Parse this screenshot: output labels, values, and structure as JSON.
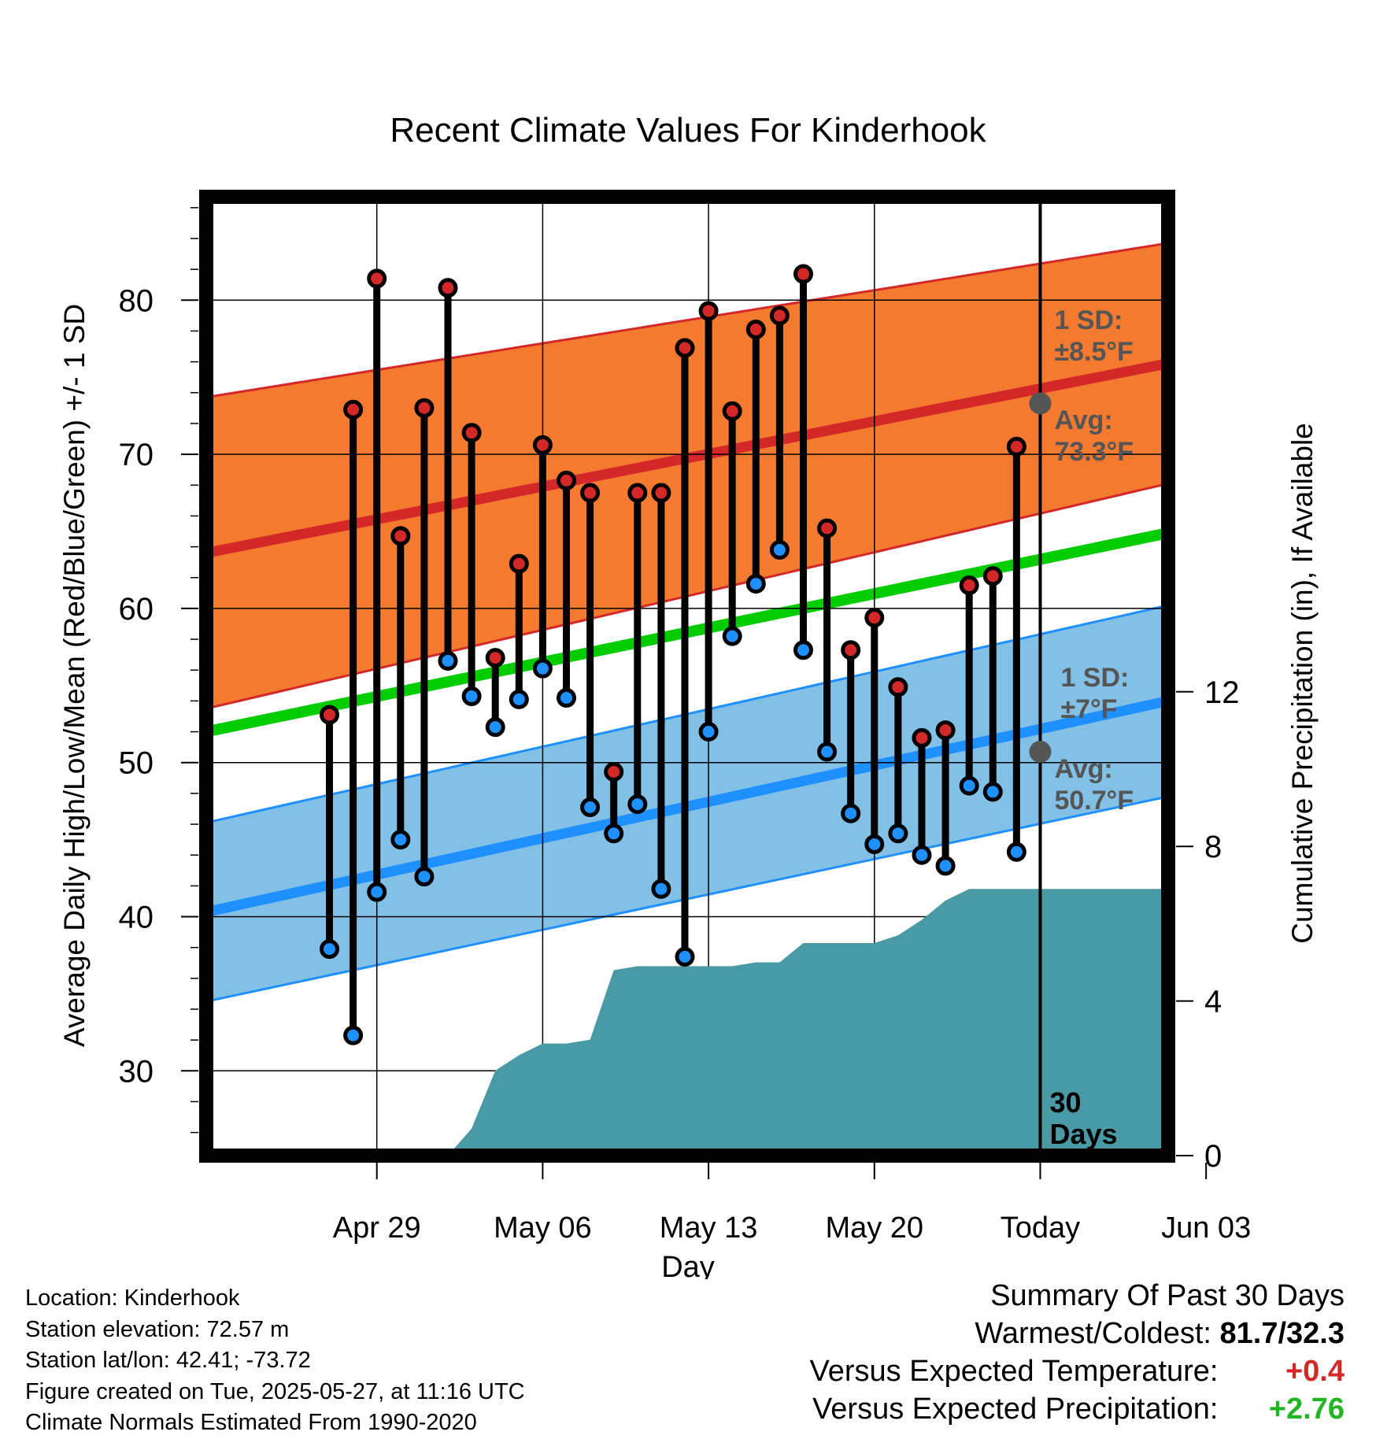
{
  "chart_data": {
    "type": "line",
    "title": "Recent Climate Values For Kinderhook",
    "xlabel": "Day",
    "ylabel_left": "Average Daily High/Low/Mean (Red/Blue/Green) +/- 1 SD",
    "ylabel_right": "Cumulative Precipitation (in), If Available",
    "ylim_left": [
      24.5,
      86
    ],
    "ylim_right": [
      0,
      16
    ],
    "x_range_days": [
      -7.2,
      33.4
    ],
    "x_ticks": [
      {
        "day": 0,
        "label": "Apr 29"
      },
      {
        "day": 7,
        "label": "May 06"
      },
      {
        "day": 14,
        "label": "May 13"
      },
      {
        "day": 21,
        "label": "May 20"
      },
      {
        "day": 28,
        "label": "Today"
      },
      {
        "day": 35,
        "label": "Jun 03"
      }
    ],
    "y_ticks_left": [
      30,
      40,
      50,
      60,
      70,
      80
    ],
    "y_ticks_right": [
      0,
      4,
      8,
      12
    ],
    "today_day": 28,
    "today_marker_label_number": "30",
    "today_marker_label_word": "Days",
    "normal_high": {
      "start": 63.6,
      "end": 75.9,
      "sd_start": 10.1,
      "sd_end": 7.8,
      "color": "#d42828",
      "band_color": "#f47a30"
    },
    "normal_low": {
      "start": 40.3,
      "end": 54.0,
      "sd_start": 5.8,
      "sd_end": 6.2,
      "color": "#1e90ff",
      "band_color": "#82c0e6"
    },
    "normal_mean": {
      "start": 52.0,
      "end": 64.9,
      "color": "#00cc00"
    },
    "annotations": [
      {
        "text_top": "1 SD:",
        "text_bottom": "±8.5°F",
        "series": "high"
      },
      {
        "text_top": "Avg:",
        "text_bottom": "73.3°F",
        "series": "high",
        "value": 73.3
      },
      {
        "text_top": "1 SD:",
        "text_bottom": "±7°F",
        "series": "low"
      },
      {
        "text_top": "Avg:",
        "text_bottom": "50.7°F",
        "series": "low",
        "value": 50.7
      }
    ],
    "daily": [
      {
        "day": -2,
        "high": 53.1,
        "low": 37.9
      },
      {
        "day": -1,
        "high": 72.9,
        "low": 32.3
      },
      {
        "day": 0,
        "high": 81.4,
        "low": 41.6
      },
      {
        "day": 1,
        "high": 64.7,
        "low": 45.0
      },
      {
        "day": 2,
        "high": 73.0,
        "low": 42.6
      },
      {
        "day": 3,
        "high": 80.8,
        "low": 56.6
      },
      {
        "day": 4,
        "high": 71.4,
        "low": 54.3
      },
      {
        "day": 5,
        "high": 56.8,
        "low": 52.3
      },
      {
        "day": 6,
        "high": 62.9,
        "low": 54.1
      },
      {
        "day": 7,
        "high": 70.6,
        "low": 56.1
      },
      {
        "day": 8,
        "high": 68.3,
        "low": 54.2
      },
      {
        "day": 9,
        "high": 67.5,
        "low": 47.1
      },
      {
        "day": 10,
        "high": 49.4,
        "low": 45.4
      },
      {
        "day": 11,
        "high": 67.5,
        "low": 47.3
      },
      {
        "day": 12,
        "high": 67.5,
        "low": 41.8
      },
      {
        "day": 13,
        "high": 76.9,
        "low": 37.4
      },
      {
        "day": 14,
        "high": 79.3,
        "low": 52.0
      },
      {
        "day": 15,
        "high": 72.8,
        "low": 58.2
      },
      {
        "day": 16,
        "high": 78.1,
        "low": 61.6
      },
      {
        "day": 17,
        "high": 79.0,
        "low": 63.8
      },
      {
        "day": 18,
        "high": 81.7,
        "low": 57.3
      },
      {
        "day": 19,
        "high": 65.2,
        "low": 50.7
      },
      {
        "day": 20,
        "high": 57.3,
        "low": 46.7
      },
      {
        "day": 21,
        "high": 59.4,
        "low": 44.7
      },
      {
        "day": 22,
        "high": 54.9,
        "low": 45.4
      },
      {
        "day": 23,
        "high": 51.6,
        "low": 44.0
      },
      {
        "day": 24,
        "high": 52.1,
        "low": 43.3
      },
      {
        "day": 25,
        "high": 61.5,
        "low": 48.5
      },
      {
        "day": 26,
        "high": 62.1,
        "low": 48.1
      },
      {
        "day": 27,
        "high": 70.5,
        "low": 44.2
      }
    ],
    "cumulative_precip": {
      "color": "#4a9aa5",
      "points": [
        [
          3,
          0
        ],
        [
          4,
          0.7
        ],
        [
          5,
          2.2
        ],
        [
          6,
          2.6
        ],
        [
          7,
          2.9
        ],
        [
          8,
          2.9
        ],
        [
          9,
          3.0
        ],
        [
          10,
          4.8
        ],
        [
          11,
          4.9
        ],
        [
          12,
          4.9
        ],
        [
          13,
          4.9
        ],
        [
          14,
          4.9
        ],
        [
          15,
          4.9
        ],
        [
          16,
          5.0
        ],
        [
          17,
          5.0
        ],
        [
          18,
          5.5
        ],
        [
          19,
          5.5
        ],
        [
          20,
          5.5
        ],
        [
          21,
          5.5
        ],
        [
          22,
          5.7
        ],
        [
          23,
          6.1
        ],
        [
          24,
          6.6
        ],
        [
          25,
          6.9
        ],
        [
          26,
          6.9
        ],
        [
          27,
          6.9
        ],
        [
          28,
          6.9
        ],
        [
          33.4,
          6.9
        ]
      ]
    }
  },
  "footer": {
    "location": "Location: Kinderhook",
    "elevation": "Station elevation: 72.57 m",
    "latlon": "Station lat/lon: 42.41; -73.72",
    "created": "Figure created on Tue, 2025-05-27, at 11:16 UTC",
    "normals": "Climate Normals Estimated From 1990-2020"
  },
  "summary": {
    "title": "Summary Of Past 30 Days",
    "warmest_label": "Warmest/Coldest:",
    "warmest_value": "81.7/32.3",
    "temp_label": "Versus Expected Temperature:",
    "temp_value": "+0.4",
    "temp_color": "#d42828",
    "precip_label": "Versus Expected Precipitation:",
    "precip_value": "+2.76",
    "precip_color": "#22b422"
  }
}
